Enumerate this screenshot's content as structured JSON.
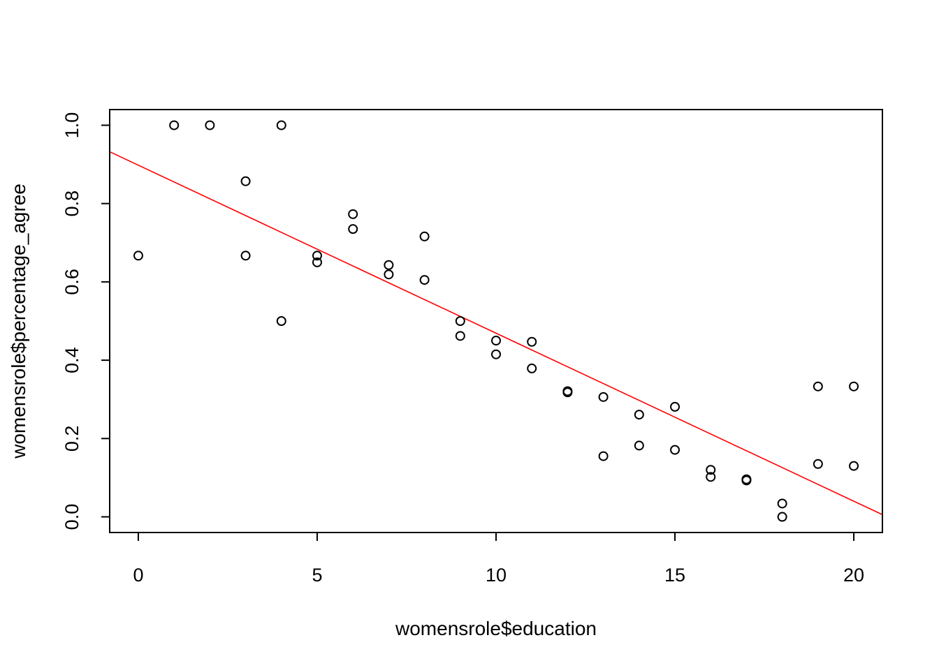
{
  "chart_data": {
    "type": "scatter",
    "title": "",
    "xlabel": "womensrole$education",
    "ylabel": "womensrole$percentage_agree",
    "xlim": [
      -0.8,
      20.8
    ],
    "ylim": [
      -0.04,
      1.04
    ],
    "x_ticks": [
      0,
      5,
      10,
      15,
      20
    ],
    "y_ticks": [
      0.0,
      0.2,
      0.4,
      0.6,
      0.8,
      1.0
    ],
    "x_tick_labels": [
      "0",
      "5",
      "10",
      "15",
      "20"
    ],
    "y_tick_labels": [
      "0.0",
      "0.2",
      "0.4",
      "0.6",
      "0.8",
      "1.0"
    ],
    "grid": false,
    "marker": "open-circle",
    "point_color": "#000000",
    "points": [
      {
        "x": 0,
        "y": 0.667
      },
      {
        "x": 1,
        "y": 1.0
      },
      {
        "x": 2,
        "y": 1.0
      },
      {
        "x": 3,
        "y": 0.857
      },
      {
        "x": 3,
        "y": 0.667
      },
      {
        "x": 4,
        "y": 1.0
      },
      {
        "x": 4,
        "y": 0.5
      },
      {
        "x": 5,
        "y": 0.667
      },
      {
        "x": 5,
        "y": 0.65
      },
      {
        "x": 6,
        "y": 0.773
      },
      {
        "x": 6,
        "y": 0.735
      },
      {
        "x": 7,
        "y": 0.643
      },
      {
        "x": 7,
        "y": 0.619
      },
      {
        "x": 8,
        "y": 0.716
      },
      {
        "x": 8,
        "y": 0.605
      },
      {
        "x": 9,
        "y": 0.5
      },
      {
        "x": 9,
        "y": 0.462
      },
      {
        "x": 10,
        "y": 0.45
      },
      {
        "x": 10,
        "y": 0.415
      },
      {
        "x": 11,
        "y": 0.447
      },
      {
        "x": 11,
        "y": 0.379
      },
      {
        "x": 12,
        "y": 0.321
      },
      {
        "x": 12,
        "y": 0.318
      },
      {
        "x": 13,
        "y": 0.306
      },
      {
        "x": 13,
        "y": 0.155
      },
      {
        "x": 14,
        "y": 0.261
      },
      {
        "x": 14,
        "y": 0.182
      },
      {
        "x": 15,
        "y": 0.281
      },
      {
        "x": 15,
        "y": 0.171
      },
      {
        "x": 16,
        "y": 0.12
      },
      {
        "x": 16,
        "y": 0.102
      },
      {
        "x": 17,
        "y": 0.096
      },
      {
        "x": 17,
        "y": 0.093
      },
      {
        "x": 18,
        "y": 0.034
      },
      {
        "x": 18,
        "y": 0.0
      },
      {
        "x": 19,
        "y": 0.333
      },
      {
        "x": 19,
        "y": 0.135
      },
      {
        "x": 20,
        "y": 0.333
      },
      {
        "x": 20,
        "y": 0.13
      }
    ],
    "fit_line": {
      "intercept": 0.898,
      "slope": -0.0429,
      "color": "#ff0000"
    }
  }
}
